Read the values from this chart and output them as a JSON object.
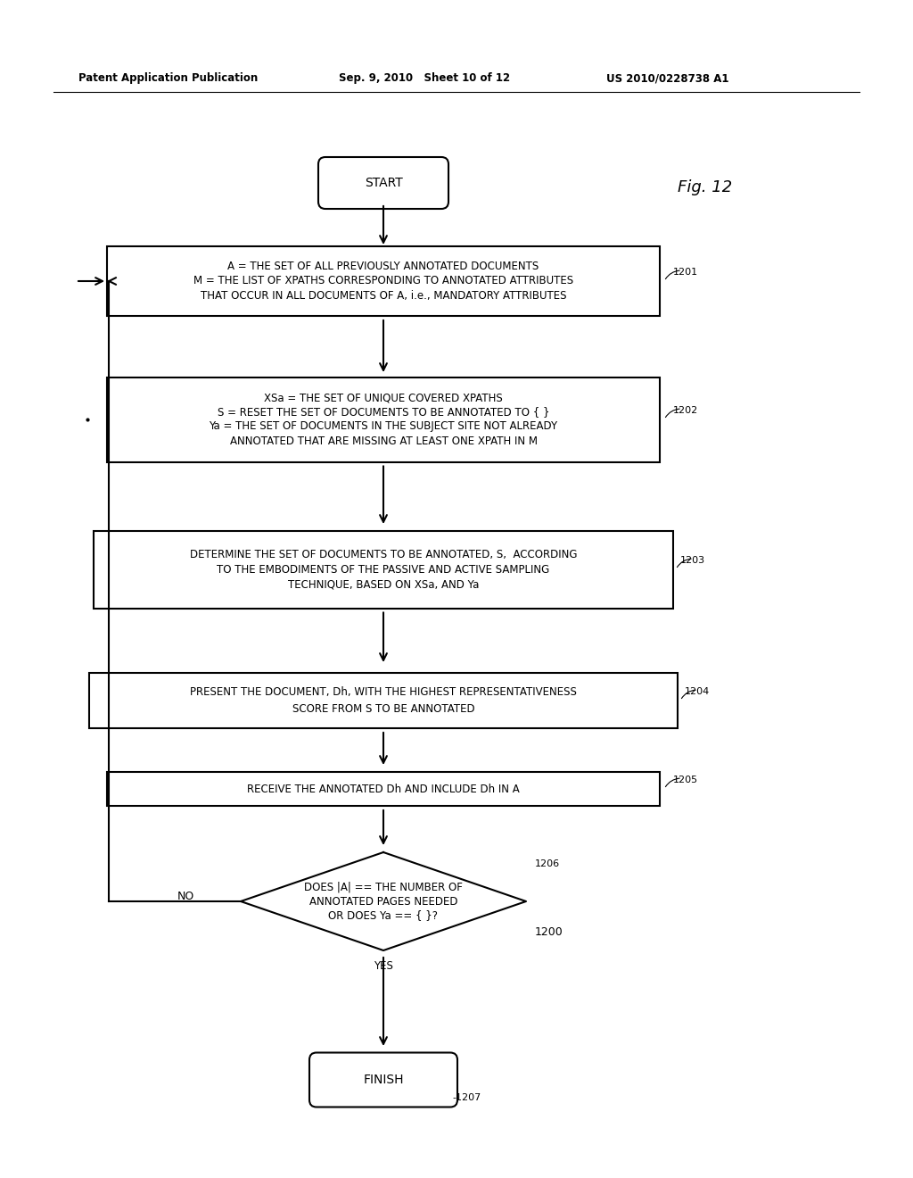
{
  "bg_color": "#ffffff",
  "header_left": "Patent Application Publication",
  "header_mid": "Sep. 9, 2010   Sheet 10 of 12",
  "header_right": "US 2010/0228738 A1",
  "fig_label": "Fig. 12",
  "start_label": "START",
  "finish_label": "FINISH",
  "box1201_lines": [
    "A = THE SET OF ALL PREVIOUSLY ANNOTATED DOCUMENTS",
    "M = THE LIST OF XPATHS CORRESPONDING TO ANNOTATED ATTRIBUTES",
    "THAT OCCUR IN ALL DOCUMENTS OF A, i.e., MANDATORY ATTRIBUTES"
  ],
  "box1202_lines": [
    "XSa = THE SET OF UNIQUE COVERED XPATHS",
    "S = RESET THE SET OF DOCUMENTS TO BE ANNOTATED TO { }",
    "Ya = THE SET OF DOCUMENTS IN THE SUBJECT SITE NOT ALREADY",
    "ANNOTATED THAT ARE MISSING AT LEAST ONE XPATH IN M"
  ],
  "box1203_lines": [
    "DETERMINE THE SET OF DOCUMENTS TO BE ANNOTATED, S,  ACCORDING",
    "TO THE EMBODIMENTS OF THE PASSIVE AND ACTIVE SAMPLING",
    "TECHNIQUE, BASED ON XSa, AND Ya"
  ],
  "box1204_lines": [
    "PRESENT THE DOCUMENT, Dh, WITH THE HIGHEST REPRESENTATIVENESS",
    "SCORE FROM S TO BE ANNOTATED"
  ],
  "box1205_lines": [
    "RECEIVE THE ANNOTATED Dh AND INCLUDE Dh IN A"
  ],
  "diamond1206_lines": [
    "DOES |A| == THE NUMBER OF",
    "ANNOTATED PAGES NEEDED",
    "OR DOES Ya == { }?"
  ],
  "label_1201": "1201",
  "label_1202": "1202",
  "label_1203": "1203",
  "label_1204": "1204",
  "label_1205": "1205",
  "label_1206": "1206",
  "label_1207": "-1207",
  "label_1200": "1200",
  "no_label": "NO",
  "yes_label": "YES"
}
